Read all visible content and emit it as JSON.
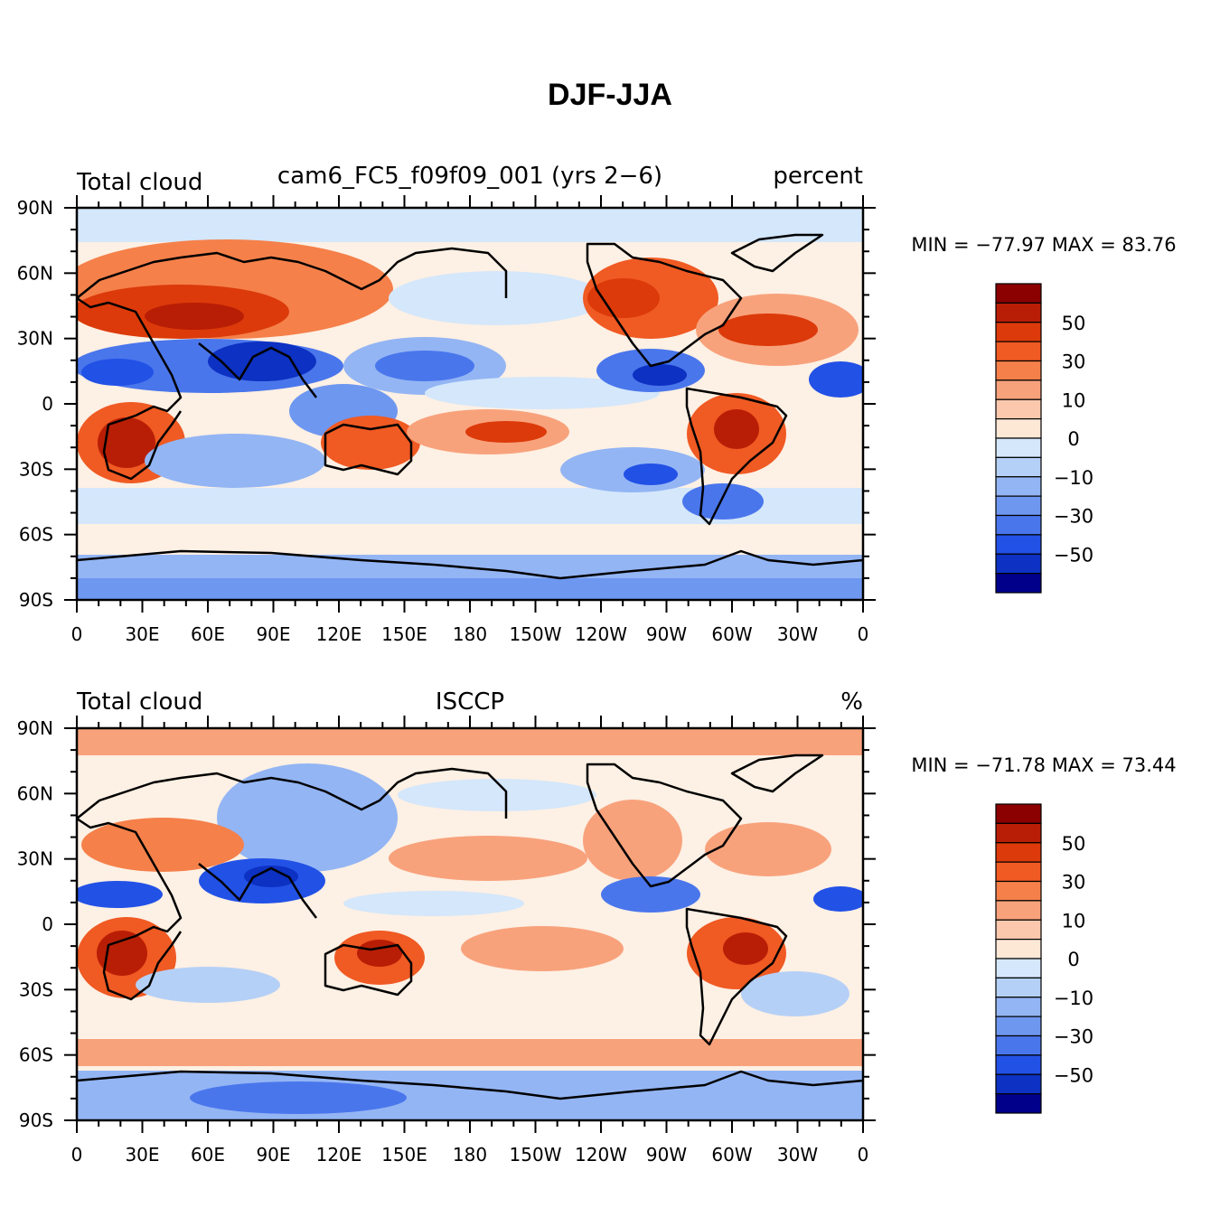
{
  "title": "DJF-JJA",
  "panels": [
    {
      "id": "model",
      "left_title": "Total cloud",
      "center_title": "cam6_FC5_f09f09_001 (yrs 2−6)",
      "right_title": "percent",
      "min_label": "MIN",
      "min_value": "−77.97",
      "max_label": "MAX",
      "max_value": "83.76",
      "stats_text": "MIN = −77.97 MAX = 83.76"
    },
    {
      "id": "obs",
      "left_title": "Total cloud",
      "center_title": "ISCCP",
      "right_title": "%",
      "min_label": "MIN",
      "min_value": "−71.78",
      "max_label": "MAX",
      "max_value": "73.44",
      "stats_text": "MIN = −71.78 MAX = 73.44"
    }
  ],
  "map_axes": {
    "lat_labels": [
      "90N",
      "60N",
      "30N",
      "0",
      "30S",
      "60S",
      "90S"
    ],
    "lon_labels": [
      "0",
      "30E",
      "60E",
      "90E",
      "120E",
      "150E",
      "180",
      "150W",
      "120W",
      "90W",
      "60W",
      "30W",
      "0"
    ]
  },
  "colorbar": {
    "labels": [
      "50",
      "30",
      "10",
      "0",
      "−10",
      "−30",
      "−50"
    ],
    "colors": [
      "#8b0000",
      "#b81e05",
      "#dc3a0a",
      "#f05a23",
      "#f5804a",
      "#f8a27c",
      "#fbc8ad",
      "#fde8d6",
      "#d4e7fb",
      "#b5d0f6",
      "#93b5f4",
      "#6e97f0",
      "#4a76ec",
      "#2251e6",
      "#0d31c2",
      "#00008b"
    ]
  },
  "colors": {
    "cold": "#2046d8",
    "warm": "#e04a14",
    "neutral": "#fdf0e4"
  }
}
